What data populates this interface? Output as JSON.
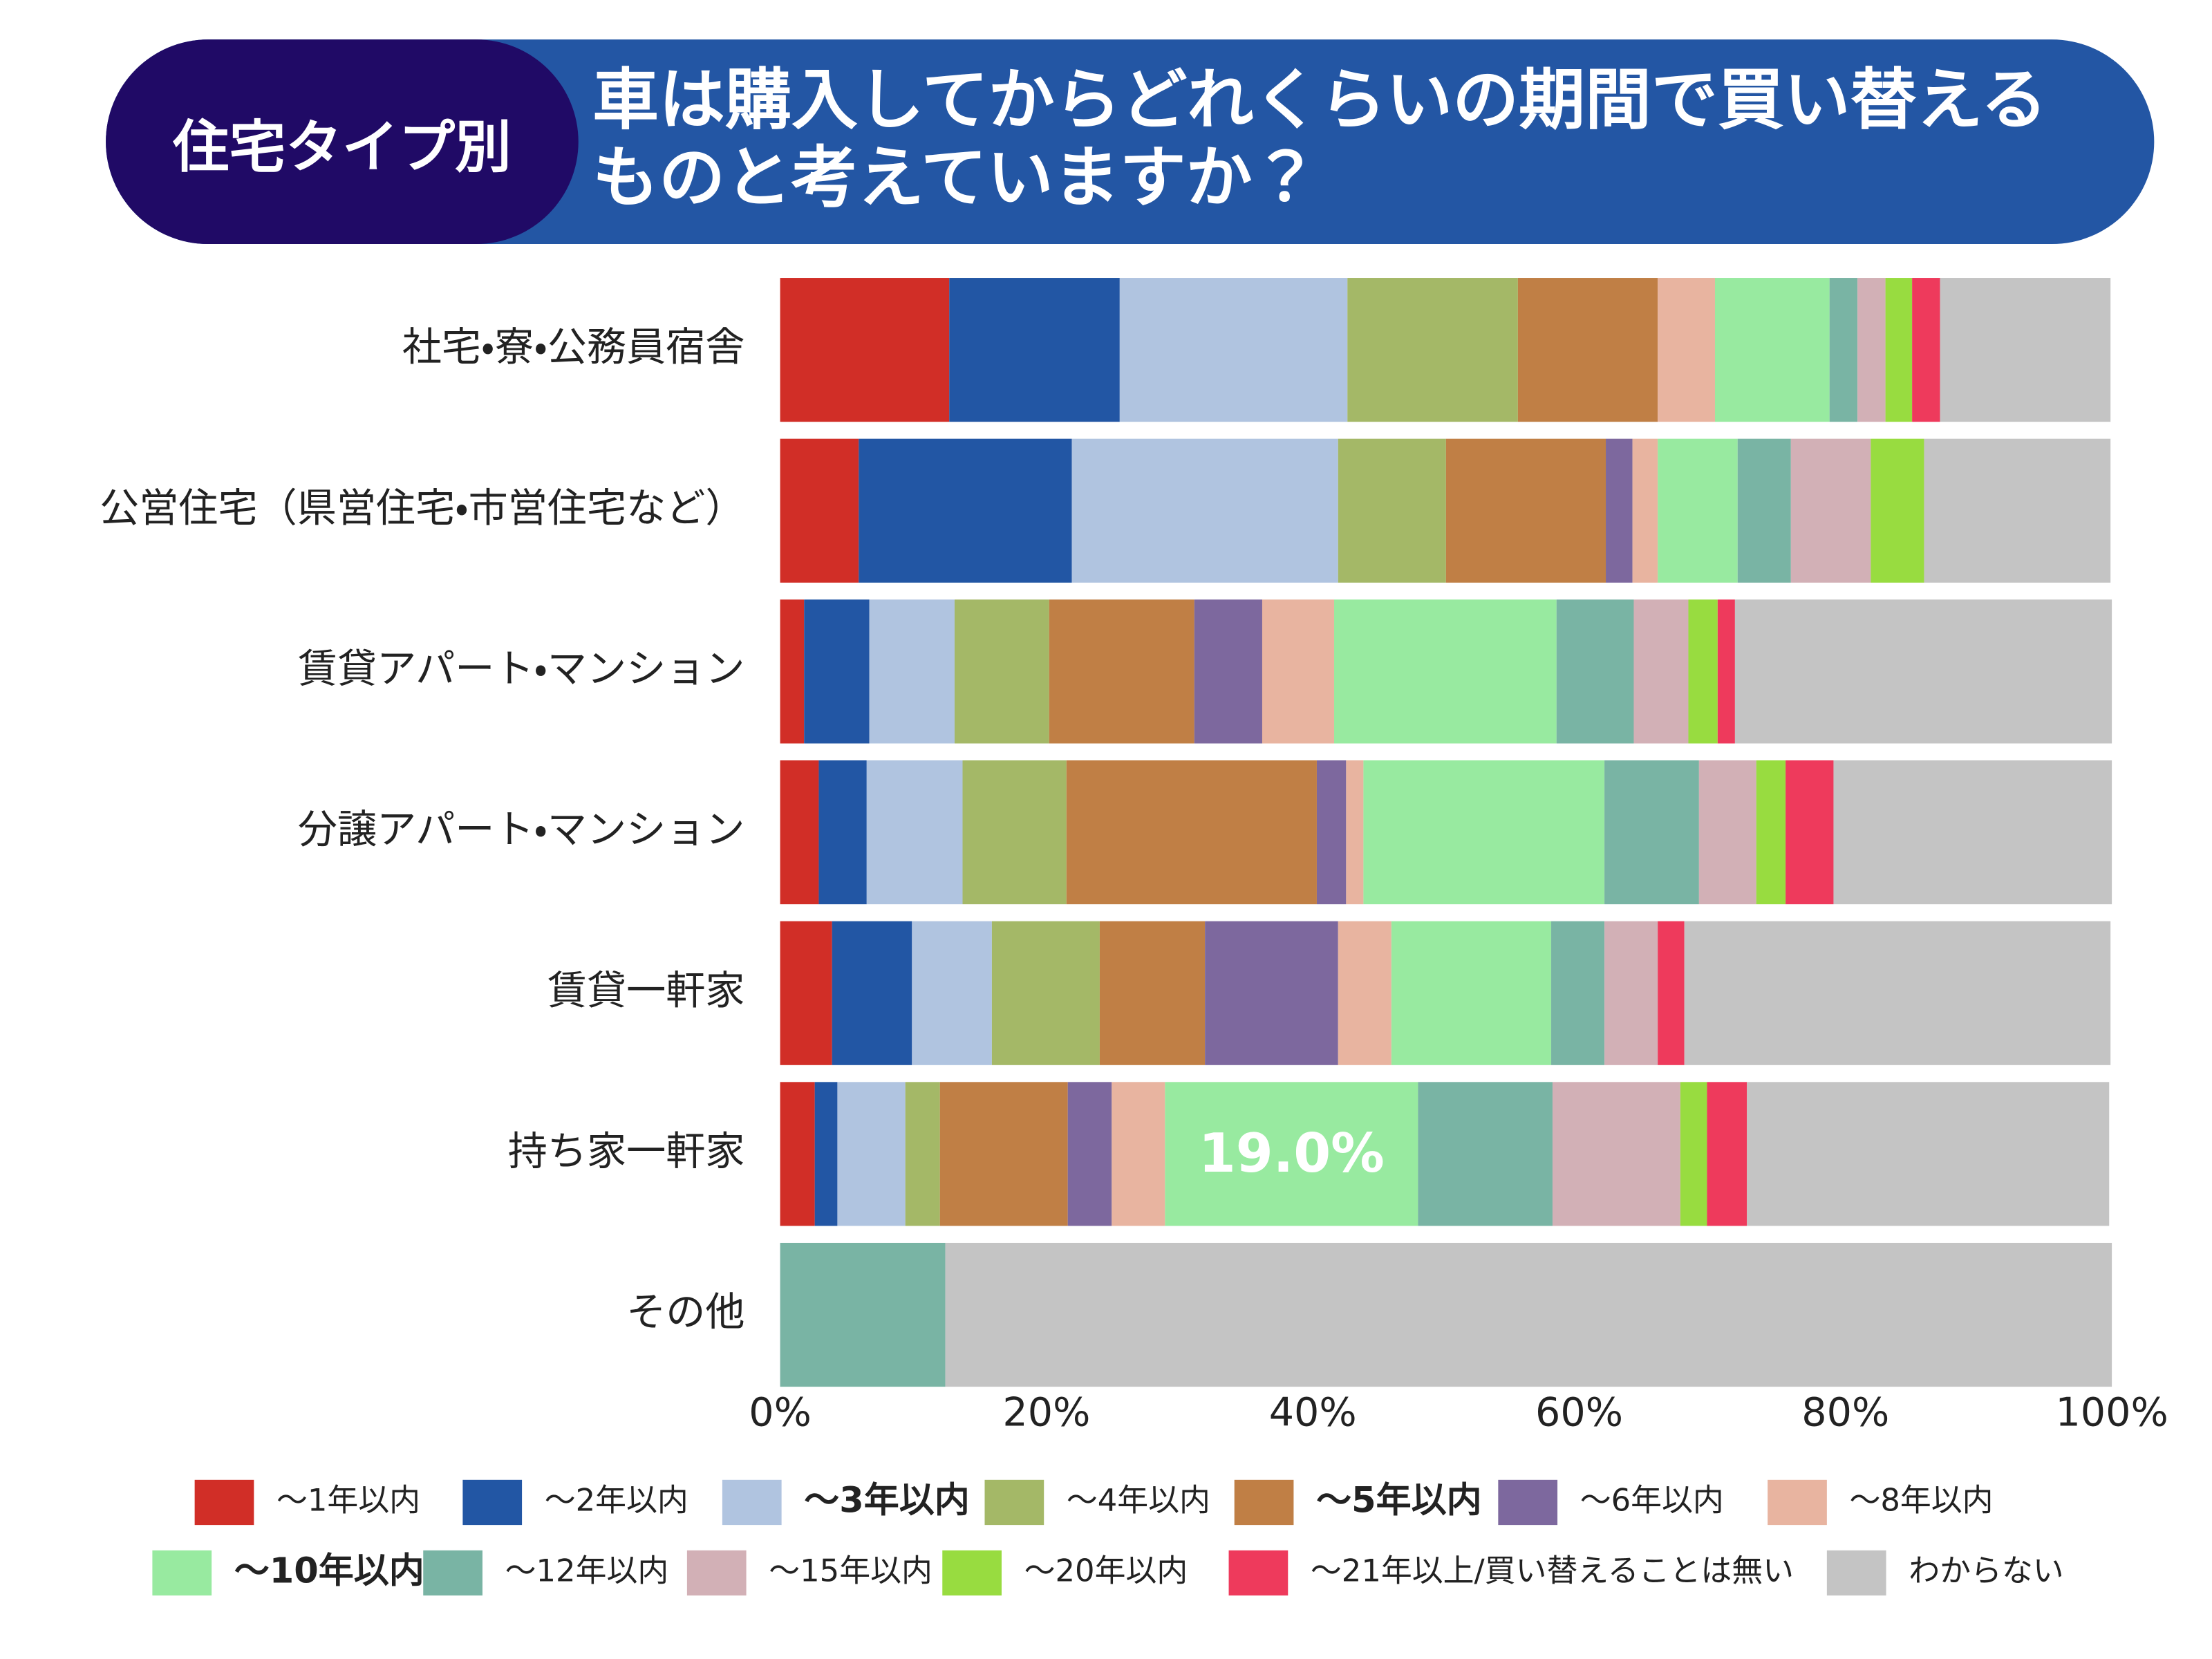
{
  "chart_data": {
    "type": "stacked-barh",
    "header": "住宅タイプ別",
    "title": "車は購入してからどれくらいの期間で買い替えるものと考えていますか？",
    "categories": [
      "社宅・寮・公務員宿舎",
      "公営住宅（県営住宅・市営住宅など）",
      "賃貸アパート・マンション",
      "分譲アパート・マンション",
      "賃貸一軒家",
      "持ち家一軒家",
      "その他"
    ],
    "xlim": [
      0,
      100
    ],
    "xticks": [
      {
        "value": 0,
        "label": "0%"
      },
      {
        "value": 20,
        "label": "20%"
      },
      {
        "value": 40,
        "label": "40%"
      },
      {
        "value": 60,
        "label": "60%"
      },
      {
        "value": 80,
        "label": "80%"
      },
      {
        "value": 100,
        "label": "100%"
      }
    ],
    "series": [
      {
        "name": "～1年以内",
        "color": "#d12e27",
        "values": [
          12.7,
          5.9,
          1.8,
          2.9,
          3.9,
          2.6,
          0
        ]
      },
      {
        "name": "～2年以内",
        "color": "#2256a4",
        "values": [
          12.8,
          16.0,
          4.9,
          3.6,
          6.0,
          1.7,
          0
        ]
      },
      {
        "name": "～3年以内",
        "color": "#b0c4e0",
        "bold": true,
        "values": [
          17.1,
          20.0,
          6.4,
          7.2,
          6.0,
          5.1,
          0
        ]
      },
      {
        "name": "～4年以内",
        "color": "#a4b867",
        "values": [
          12.8,
          8.1,
          7.1,
          7.8,
          8.1,
          2.6,
          0
        ]
      },
      {
        "name": "～5年以内",
        "color": "#c07f45",
        "bold": true,
        "values": [
          10.5,
          12.0,
          10.9,
          18.8,
          7.9,
          9.6,
          0
        ]
      },
      {
        "name": "～6年以内",
        "color": "#7d689e",
        "values": [
          0,
          2.0,
          5.1,
          2.2,
          10.0,
          3.3,
          0
        ]
      },
      {
        "name": "～8年以内",
        "color": "#e8b4a0",
        "values": [
          4.3,
          1.9,
          5.4,
          1.3,
          4.0,
          4.0,
          0
        ]
      },
      {
        "name": "～10年以内",
        "color": "#98eaa0",
        "bold": true,
        "values": [
          8.6,
          6.0,
          16.7,
          18.1,
          12.0,
          19.0,
          0
        ],
        "value_labels": [
          null,
          null,
          null,
          null,
          null,
          "19.0%",
          null
        ]
      },
      {
        "name": "～12年以内",
        "color": "#79b4a4",
        "values": [
          2.1,
          4.0,
          5.8,
          7.1,
          4.0,
          10.1,
          12.4
        ]
      },
      {
        "name": "～15年以内",
        "color": "#d2b0b6",
        "values": [
          2.1,
          6.0,
          4.1,
          4.3,
          4.0,
          9.6,
          0
        ]
      },
      {
        "name": "～20年以内",
        "color": "#98dc40",
        "values": [
          2.0,
          4.0,
          2.2,
          2.2,
          0,
          2.0,
          0
        ]
      },
      {
        "name": "～21年以上/買い替えることは無い",
        "color": "#ee3a5c",
        "values": [
          2.1,
          0,
          1.3,
          3.6,
          2.0,
          3.0,
          0
        ]
      },
      {
        "name": "わからない",
        "color": "#c4c4c4",
        "values": [
          12.8,
          14.0,
          28.3,
          20.9,
          32.0,
          27.2,
          87.6
        ]
      }
    ]
  }
}
